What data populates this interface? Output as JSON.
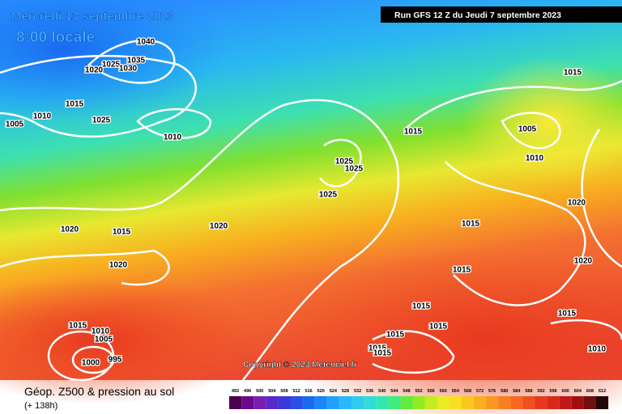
{
  "header": {
    "date": "Mercredi 13 septembre 2023",
    "time": "8:00 locale",
    "run": "Run GFS 12 Z du Jeudi 7 septembre 2023"
  },
  "copyright": "Copyright © 2023 Meteociel.fr",
  "footer": {
    "title": "Géop. Z500 & pression au sol",
    "lead": "(+ 138h)"
  },
  "isobar_labels": [
    "1040",
    "1035",
    "1025",
    "1030",
    "1020",
    "1015",
    "1010",
    "1005",
    "1025",
    "1010",
    "1015",
    "1005",
    "1015",
    "1010",
    "1025",
    "1025",
    "1025",
    "1020",
    "1015",
    "1020",
    "1015",
    "1020",
    "1020",
    "1020",
    "1015",
    "1015",
    "1015",
    "1015",
    "1010",
    "1015",
    "1015",
    "1005",
    "1015",
    "1015",
    "1000",
    "1010",
    "995"
  ],
  "scale": {
    "values": [
      492,
      496,
      500,
      504,
      508,
      512,
      516,
      520,
      524,
      528,
      532,
      536,
      540,
      544,
      548,
      552,
      556,
      560,
      564,
      568,
      572,
      576,
      580,
      584,
      588,
      592,
      596,
      600,
      604,
      608,
      612
    ],
    "colors": [
      "#4b0050",
      "#6a0a8a",
      "#7a1fb0",
      "#5a2ac8",
      "#3a3ad8",
      "#2a50e8",
      "#1a6af0",
      "#1a86f8",
      "#20a0ff",
      "#28b8ff",
      "#30ccf0",
      "#30dcd8",
      "#30e8b0",
      "#40ec80",
      "#60ec40",
      "#90ec20",
      "#c0ec20",
      "#e8ec20",
      "#f8e020",
      "#f8c820",
      "#f8b020",
      "#f89820",
      "#f88020",
      "#f86820",
      "#f05020",
      "#e83820",
      "#d82818",
      "#c01818",
      "#a01010",
      "#701010",
      "#200808"
    ]
  }
}
